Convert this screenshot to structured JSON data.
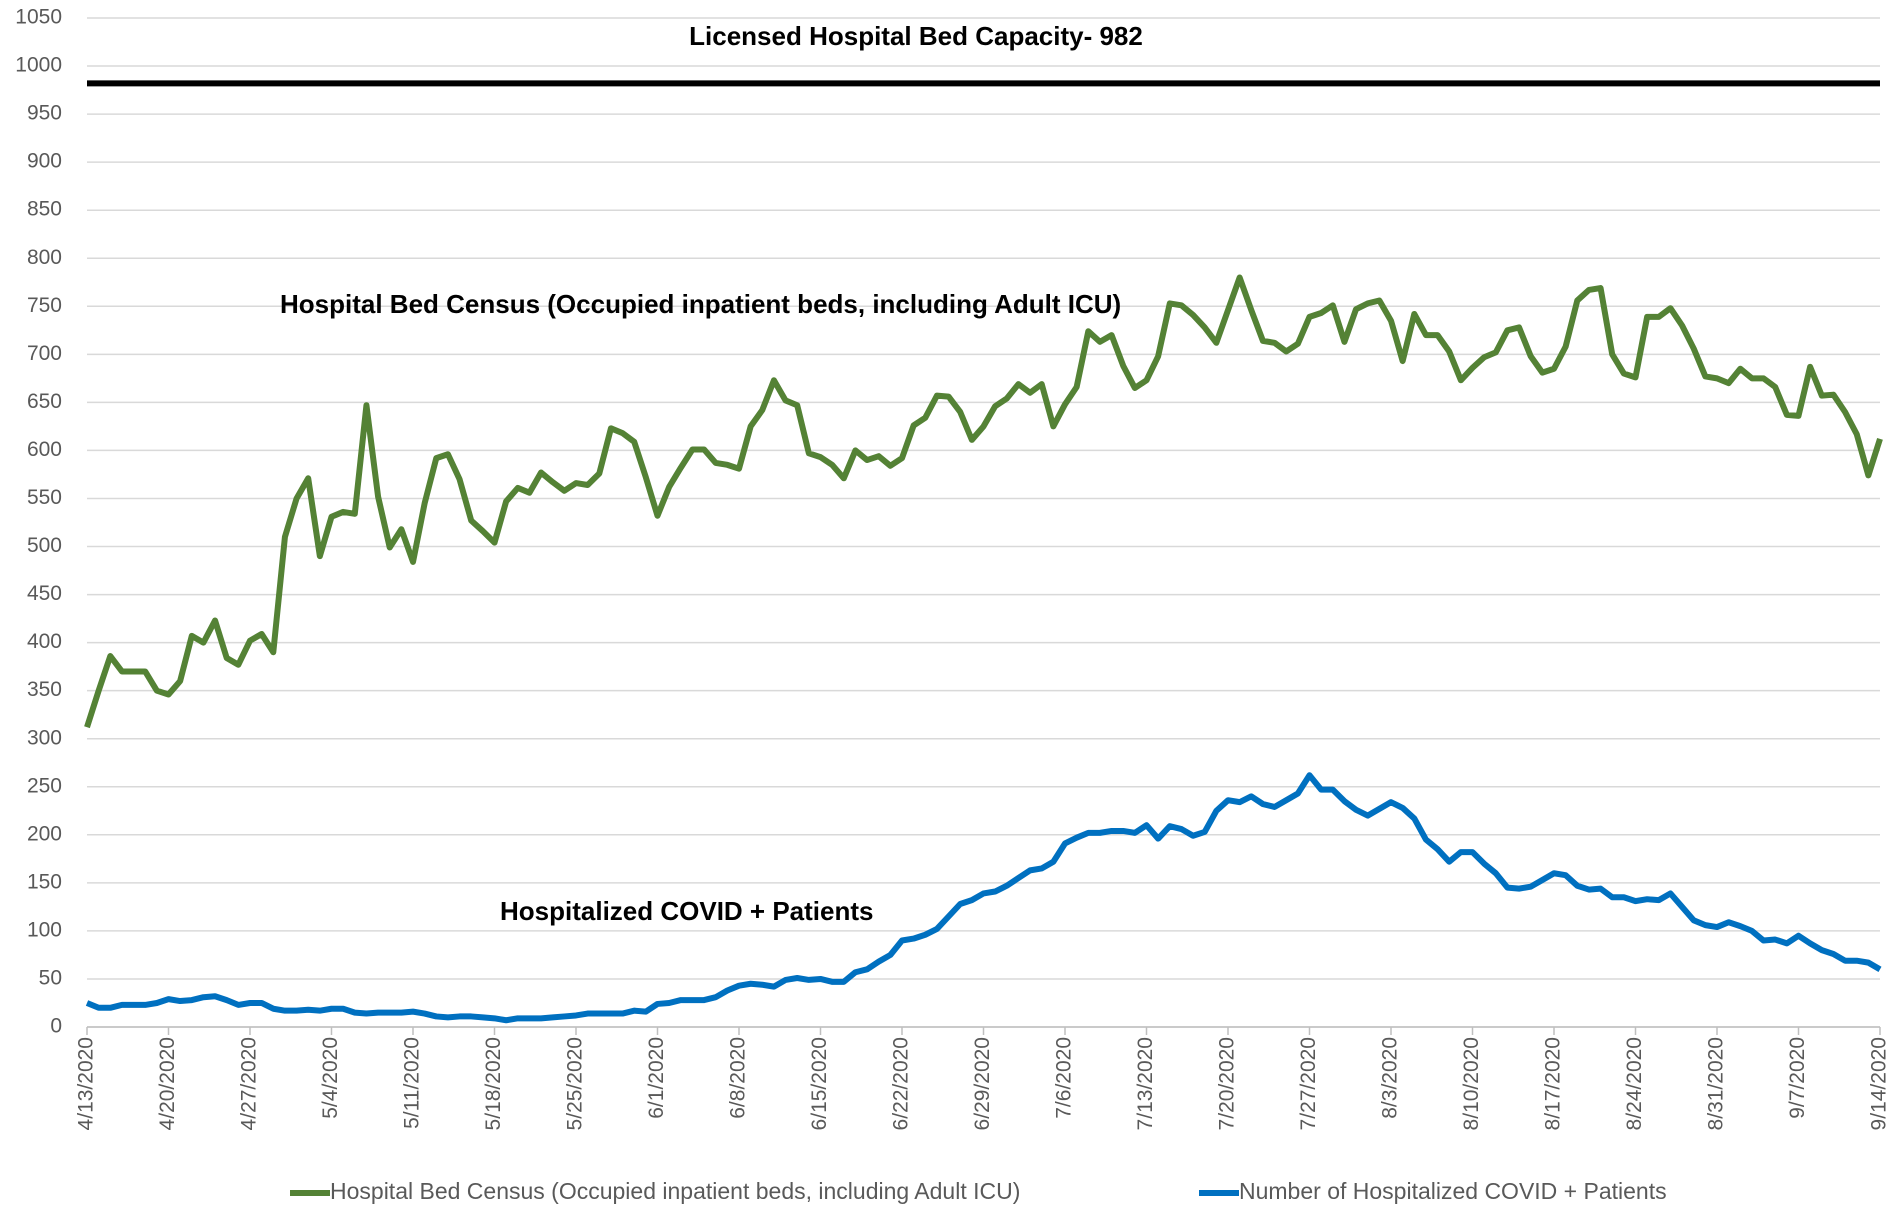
{
  "chart_data": {
    "type": "line",
    "capacity": {
      "value": 982,
      "label": "Licensed Hospital Bed Capacity- 982",
      "color": "#000000"
    },
    "annotations": [
      "Hospital Bed Census (Occupied inpatient beds, including Adult ICU)",
      "Hospitalized COVID + Patients"
    ],
    "categories": [
      "4/13/2020",
      null,
      null,
      null,
      null,
      null,
      null,
      "4/20/2020",
      null,
      null,
      null,
      null,
      null,
      null,
      "4/27/2020",
      null,
      null,
      null,
      null,
      null,
      null,
      "5/4/2020",
      null,
      null,
      null,
      null,
      null,
      null,
      "5/11/2020",
      null,
      null,
      null,
      null,
      null,
      null,
      "5/18/2020",
      null,
      null,
      null,
      null,
      null,
      null,
      "5/25/2020",
      null,
      null,
      null,
      null,
      null,
      null,
      "6/1/2020",
      null,
      null,
      null,
      null,
      null,
      null,
      "6/8/2020",
      null,
      null,
      null,
      null,
      null,
      null,
      "6/15/2020",
      null,
      null,
      null,
      null,
      null,
      null,
      "6/22/2020",
      null,
      null,
      null,
      null,
      null,
      null,
      "6/29/2020",
      null,
      null,
      null,
      null,
      null,
      null,
      "7/6/2020",
      null,
      null,
      null,
      null,
      null,
      null,
      "7/13/2020",
      null,
      null,
      null,
      null,
      null,
      null,
      "7/20/2020",
      null,
      null,
      null,
      null,
      null,
      null,
      "7/27/2020",
      null,
      null,
      null,
      null,
      null,
      null,
      "8/3/2020",
      null,
      null,
      null,
      null,
      null,
      null,
      "8/10/2020",
      null,
      null,
      null,
      null,
      null,
      null,
      "8/17/2020",
      null,
      null,
      null,
      null,
      null,
      null,
      "8/24/2020",
      null,
      null,
      null,
      null,
      null,
      null,
      "8/31/2020",
      null,
      null,
      null,
      null,
      null,
      null,
      "9/7/2020",
      null,
      null,
      null,
      null,
      null,
      null,
      "9/14/2020"
    ],
    "series": [
      {
        "name": "Hospital Bed Census (Occupied inpatient beds, including Adult ICU)",
        "color": "#548235",
        "values": [
          312,
          350,
          386,
          370,
          370,
          370,
          350,
          346,
          360,
          407,
          400,
          423,
          384,
          377,
          402,
          409,
          390,
          510,
          550,
          571,
          490,
          531,
          536,
          534,
          647,
          552,
          499,
          518,
          484,
          545,
          592,
          596,
          570,
          527,
          516,
          504,
          547,
          561,
          556,
          577,
          567,
          558,
          566,
          564,
          576,
          623,
          618,
          609,
          572,
          532,
          562,
          582,
          601,
          601,
          587,
          585,
          581,
          625,
          642,
          673,
          652,
          647,
          597,
          593,
          585,
          571,
          600,
          590,
          594,
          584,
          592,
          626,
          634,
          657,
          656,
          640,
          611,
          625,
          646,
          654,
          669,
          660,
          669,
          625,
          648,
          666,
          724,
          713,
          720,
          688,
          665,
          673,
          698,
          753,
          751,
          741,
          728,
          712,
          746,
          780,
          746,
          714,
          712,
          703,
          711,
          739,
          743,
          751,
          713,
          747,
          753,
          756,
          735,
          693,
          742,
          720,
          720,
          703,
          673,
          686,
          697,
          702,
          725,
          728,
          698,
          681,
          685,
          708,
          756,
          767,
          769,
          700,
          680,
          676,
          739,
          739,
          748,
          730,
          706,
          677,
          675,
          670,
          685,
          675,
          675,
          666,
          637,
          636,
          687,
          657,
          658,
          640,
          617,
          574,
          612
        ]
      },
      {
        "name": "Number of Hospitalized COVID + Patients",
        "color": "#0070c0",
        "values": [
          25,
          20,
          20,
          23,
          23,
          23,
          25,
          29,
          27,
          28,
          31,
          32,
          28,
          23,
          25,
          25,
          19,
          17,
          17,
          18,
          17,
          19,
          19,
          15,
          14,
          15,
          15,
          15,
          16,
          14,
          11,
          10,
          11,
          11,
          10,
          9,
          7,
          9,
          9,
          9,
          10,
          11,
          12,
          14,
          14,
          14,
          14,
          17,
          16,
          24,
          25,
          28,
          28,
          28,
          31,
          38,
          43,
          45,
          44,
          42,
          49,
          51,
          49,
          50,
          47,
          47,
          57,
          60,
          68,
          75,
          90,
          92,
          96,
          102,
          115,
          128,
          132,
          139,
          141,
          147,
          155,
          163,
          165,
          172,
          191,
          197,
          202,
          202,
          204,
          204,
          202,
          210,
          196,
          209,
          206,
          199,
          203,
          225,
          236,
          234,
          240,
          232,
          229,
          236,
          243,
          262,
          247,
          247,
          235,
          226,
          220,
          227,
          234,
          228,
          217,
          195,
          185,
          172,
          182,
          182,
          170,
          160,
          145,
          144,
          146,
          153,
          160,
          158,
          147,
          143,
          144,
          135,
          135,
          131,
          133,
          132,
          139,
          125,
          111,
          106,
          104,
          109,
          105,
          100,
          90,
          91,
          87,
          95,
          87,
          80,
          76,
          69,
          69,
          67,
          60
        ]
      }
    ],
    "ylim": [
      0,
      1050
    ],
    "yticks": [
      0,
      50,
      100,
      150,
      200,
      250,
      300,
      350,
      400,
      450,
      500,
      550,
      600,
      650,
      700,
      750,
      800,
      850,
      900,
      950,
      1000,
      1050
    ],
    "grid": true,
    "legend": "bottom"
  }
}
